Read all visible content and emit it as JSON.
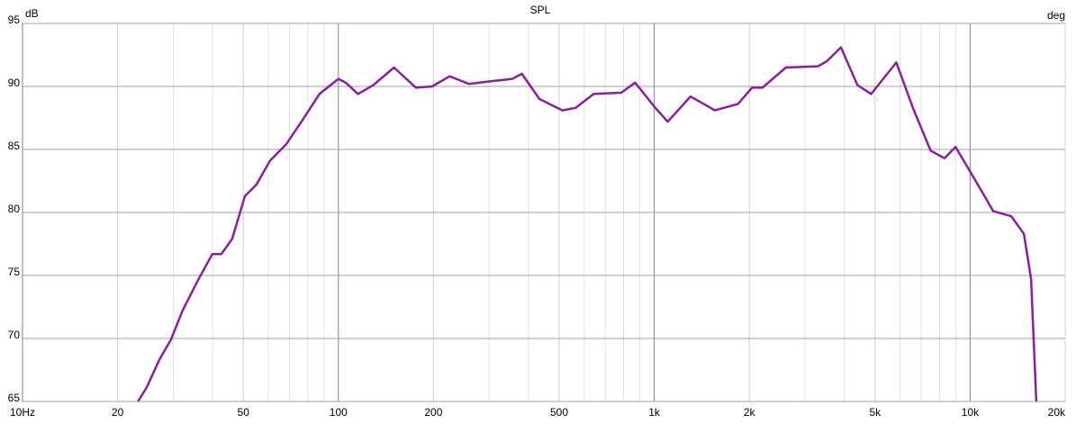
{
  "chart_data": {
    "type": "line",
    "title": "SPL",
    "ylabel": "dB",
    "y2label": "deg",
    "xscale": "log",
    "grid": true,
    "x": [
      23.2,
      24.7,
      27.1,
      29.5,
      32.1,
      35.9,
      39.9,
      42.6,
      46.1,
      50.6,
      55,
      60.7,
      68.3,
      76.4,
      87.1,
      100,
      105.5,
      115.4,
      129,
      150,
      176,
      198,
      225,
      259,
      302,
      355,
      381,
      433,
      512,
      564,
      643,
      786,
      870,
      1000,
      1103,
      1303,
      1555,
      1840,
      2040,
      2200,
      2610,
      3300,
      3520,
      3900,
      4400,
      4860,
      5840,
      6590,
      7500,
      8300,
      8990,
      10360,
      11840,
      13500,
      14800,
      15600,
      16200
    ],
    "values": [
      65,
      66.1,
      68.3,
      69.9,
      72.2,
      74.6,
      76.7,
      76.7,
      77.9,
      81.3,
      82.2,
      84.1,
      85.4,
      87.2,
      89.4,
      90.6,
      90.3,
      89.4,
      90.1,
      91.5,
      89.9,
      90,
      90.8,
      90.2,
      90.4,
      90.6,
      91,
      89,
      88.1,
      88.3,
      89.4,
      89.5,
      90.3,
      88.4,
      87.2,
      89.2,
      88.1,
      88.6,
      89.9,
      89.9,
      91.5,
      91.6,
      92,
      93.1,
      90.1,
      89.4,
      91.9,
      88.3,
      84.9,
      84.3,
      85.2,
      82.6,
      80.1,
      79.7,
      78.3,
      74.7,
      65
    ],
    "color": "#8b1e9e",
    "xlim": [
      10,
      20000
    ],
    "xticks": [
      {
        "value": 10,
        "label": "10Hz"
      },
      20,
      50,
      100,
      200,
      500,
      {
        "value": 1000,
        "label": "1k"
      },
      {
        "value": 2000,
        "label": "2k"
      },
      {
        "value": 5000,
        "label": "5k"
      },
      {
        "value": 10000,
        "label": "10k"
      },
      {
        "value": 20000,
        "label": "20k"
      }
    ],
    "xminorticks": [
      30,
      40,
      60,
      70,
      80,
      90,
      300,
      400,
      600,
      700,
      800,
      900,
      3000,
      4000,
      6000,
      7000,
      8000,
      9000
    ],
    "ylim": [
      65,
      95
    ],
    "yticks": [
      65,
      70,
      75,
      80,
      85,
      90,
      95
    ]
  }
}
